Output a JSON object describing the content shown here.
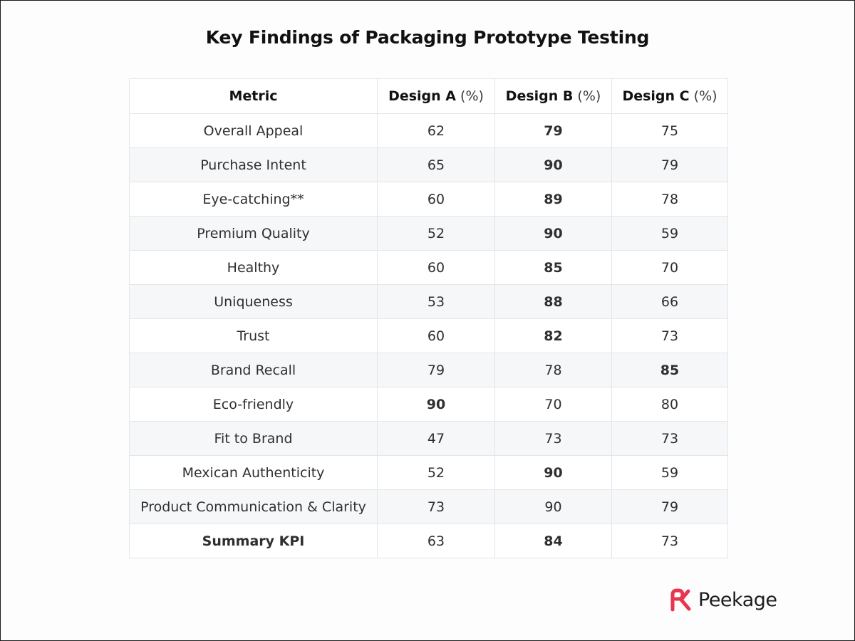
{
  "title": "Key Findings of Packaging Prototype Testing",
  "table": {
    "headers": [
      {
        "label": "Metric",
        "unit": ""
      },
      {
        "label": "Design A",
        "unit": "(%)"
      },
      {
        "label": "Design B",
        "unit": "(%)"
      },
      {
        "label": "Design C",
        "unit": "(%)"
      }
    ],
    "rows": [
      {
        "metric": "Overall Appeal",
        "a": "62",
        "b": "79",
        "c": "75",
        "a_style": "neutral",
        "b_style": "best",
        "c_style": "good"
      },
      {
        "metric": "Purchase Intent",
        "a": "65",
        "b": "90",
        "c": "79",
        "a_style": "neutral",
        "b_style": "best",
        "c_style": "neutral"
      },
      {
        "metric": "Eye-catching**",
        "a": "60",
        "b": "89",
        "c": "78",
        "a_style": "neutral",
        "b_style": "best",
        "c_style": "neutral"
      },
      {
        "metric": "Premium Quality",
        "a": "52",
        "b": "90",
        "c": "59",
        "a_style": "low",
        "b_style": "best",
        "c_style": "low"
      },
      {
        "metric": "Healthy",
        "a": "60",
        "b": "85",
        "c": "70",
        "a_style": "neutral",
        "b_style": "best",
        "c_style": "neutral"
      },
      {
        "metric": "Uniqueness",
        "a": "53",
        "b": "88",
        "c": "66",
        "a_style": "low",
        "b_style": "best",
        "c_style": "neutral"
      },
      {
        "metric": "Trust",
        "a": "60",
        "b": "82",
        "c": "73",
        "a_style": "neutral",
        "b_style": "best",
        "c_style": "neutral"
      },
      {
        "metric": "Brand Recall",
        "a": "79",
        "b": "78",
        "c": "85",
        "a_style": "neutral",
        "b_style": "neutral",
        "c_style": "best"
      },
      {
        "metric": "Eco-friendly",
        "a": "90",
        "b": "70",
        "c": "80",
        "a_style": "best",
        "b_style": "neutral",
        "c_style": "neutral"
      },
      {
        "metric": "Fit to Brand",
        "a": "47",
        "b": "73",
        "c": "73",
        "a_style": "low",
        "b_style": "neutral",
        "c_style": "neutral"
      },
      {
        "metric": "Mexican Authenticity",
        "a": "52",
        "b": "90",
        "c": "59",
        "a_style": "low",
        "b_style": "best",
        "c_style": "low"
      },
      {
        "metric": "Product Communication & Clarity",
        "a": "73",
        "b": "90",
        "c": "79",
        "a_style": "low",
        "b_style": "neutral",
        "c_style": "neutral"
      },
      {
        "metric": "Summary KPI",
        "a": "63",
        "b": "84",
        "c": "73",
        "a_style": "low",
        "b_style": "best",
        "c_style": "neutral",
        "metric_bold": true
      }
    ]
  },
  "colors": {
    "best": "#1e7d1e",
    "good": "#1e7d1e",
    "low": "#e02424",
    "neutral": "#333333",
    "logo": "#e8364f",
    "stripe": "#f6f7f9",
    "border": "#e3e5e8"
  },
  "brand": {
    "name": "Peekage",
    "logo_icon": "peekage-logo-icon"
  }
}
